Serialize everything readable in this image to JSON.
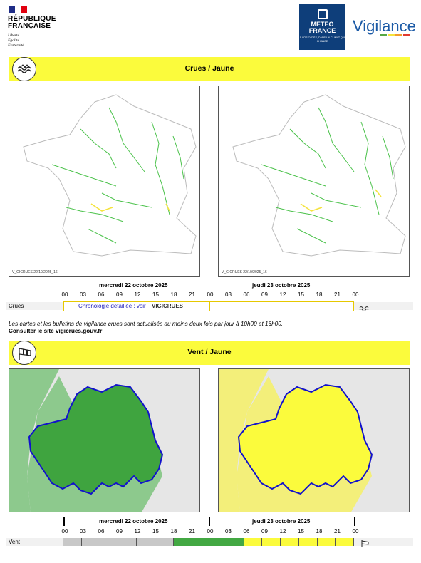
{
  "header": {
    "republic_line1": "RÉPUBLIQUE",
    "republic_line2": "FRANÇAISE",
    "motto": [
      "Liberté",
      "Égalité",
      "Fraternité"
    ],
    "mf_name_line1": "METEO",
    "mf_name_line2": "FRANCE",
    "mf_tagline": "À VOS CÔTÉS, DANS UN CLIMAT QUI CHANGE",
    "vigilance_word": "Vigilance",
    "vigilance_colors": [
      "#55a843",
      "#f5e33c",
      "#f39c2d",
      "#e23a2f"
    ]
  },
  "crues": {
    "title": "Crues / Jaune",
    "map_label_1": "V_GICRUES  22/10/2025_16",
    "map_label_2": "V_GICRUES  22/10/2025_16",
    "day1": "mercredi 22 octobre 2025",
    "day2": "jeudi 23 octobre 2025",
    "hours": [
      "00",
      "03",
      "06",
      "09",
      "12",
      "15",
      "18",
      "21",
      "00",
      "03",
      "06",
      "09",
      "12",
      "15",
      "18",
      "21",
      "00"
    ],
    "row_label": "Crues",
    "chrono_link": "Chronologie détaillée : voir",
    "vigicrues_logo": "VIGICRUES",
    "note": "Les cartes et les bulletins de vigilance crues sont actualisés au moins deux fois par jour à 10h00 et 16h00.",
    "note_link": "Consulter le site vigicrues.gouv.fr"
  },
  "vent": {
    "title": "Vent / Jaune",
    "day1": "mercredi 22 octobre 2025",
    "day2": "jeudi 23 octobre 2025",
    "hours": [
      "00",
      "03",
      "06",
      "09",
      "12",
      "15",
      "18",
      "21",
      "00",
      "03",
      "06",
      "09",
      "12",
      "15",
      "18",
      "21",
      "00"
    ],
    "row_label": "Vent",
    "map_left_color": "#43a843",
    "map_right_color": "#fbfb3c",
    "timeline_levels": [
      "grey",
      "grey",
      "grey",
      "grey",
      "grey",
      "grey",
      "green",
      "green",
      "green",
      "green",
      "yellow",
      "yellow",
      "yellow",
      "yellow",
      "yellow",
      "yellow"
    ]
  }
}
